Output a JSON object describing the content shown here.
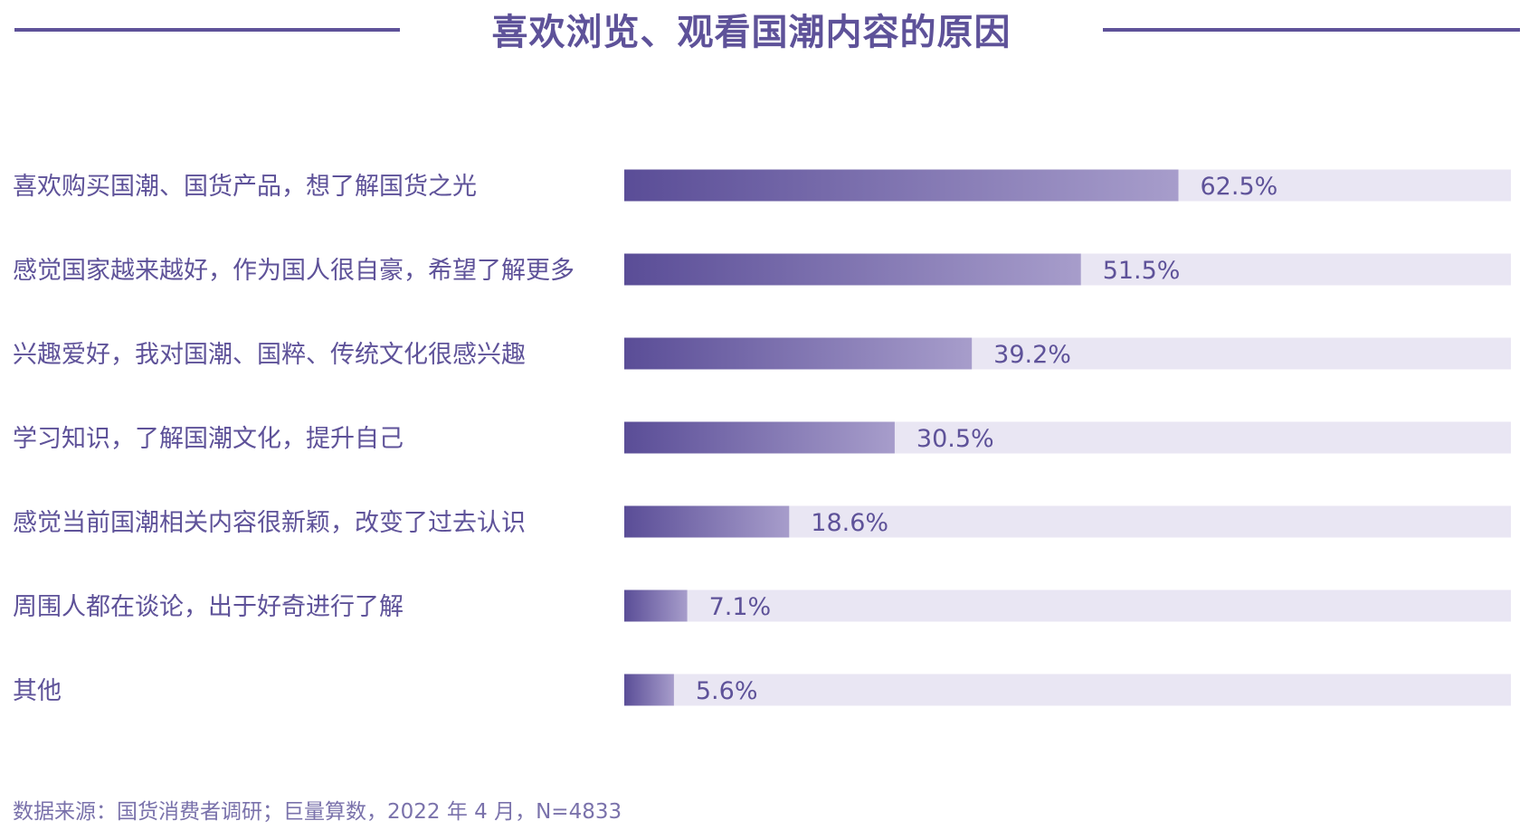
{
  "colors": {
    "accent": "#5e5299",
    "bar_start": "#5a4d97",
    "bar_end": "#a79dcb",
    "track": "#e9e6f3",
    "text": "#5e5299",
    "source_text": "#7a72ab"
  },
  "chart_data": {
    "type": "bar",
    "orientation": "horizontal",
    "title": "喜欢浏览、观看国潮内容的原因",
    "categories": [
      "喜欢购买国潮、国货产品，想了解国货之光",
      "感觉国家越来越好，作为国人很自豪，希望了解更多",
      "兴趣爱好，我对国潮、国粹、传统文化很感兴趣",
      "学习知识，了解国潮文化，提升自己",
      "感觉当前国潮相关内容很新颖，改变了过去认识",
      "周围人都在谈论，出于好奇进行了解",
      "其他"
    ],
    "values": [
      62.5,
      51.5,
      39.2,
      30.5,
      18.6,
      7.1,
      5.6
    ],
    "value_labels": [
      "62.5%",
      "51.5%",
      "39.2%",
      "30.5%",
      "18.6%",
      "7.1%",
      "5.6%"
    ],
    "xlim": [
      0,
      100
    ],
    "unit": "%",
    "grid": false,
    "legend": "none"
  },
  "source": "数据来源：国货消费者调研；巨量算数，2022 年 4 月，N=4833"
}
